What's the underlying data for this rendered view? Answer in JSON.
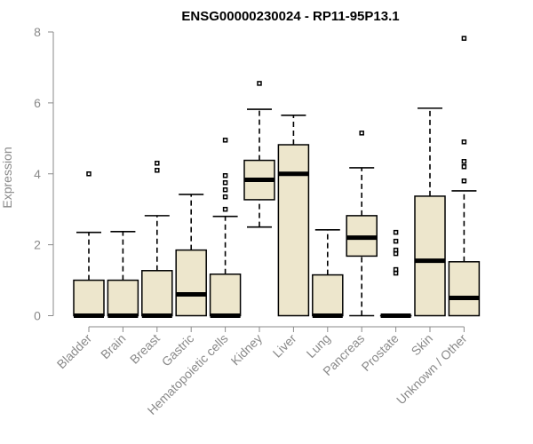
{
  "chart_data": {
    "type": "boxplot",
    "title": "ENSG00000230024 - RP11-95P13.1",
    "ylabel": "Expression",
    "xlabel": "",
    "ylim": [
      0,
      8
    ],
    "yticks": [
      0,
      2,
      4,
      6,
      8
    ],
    "box_color": "#ede6cc",
    "categories": [
      "Bladder",
      "Brain",
      "Breast",
      "Gastric",
      "Hematopoietic cells",
      "Kidney",
      "Liver",
      "Lung",
      "Pancreas",
      "Prostate",
      "Skin",
      "Unknown / Other"
    ],
    "boxes": [
      {
        "min": 0,
        "q1": 0,
        "median": 0,
        "q3": 1.0,
        "max": 2.35,
        "outliers": [
          4.0
        ]
      },
      {
        "min": 0,
        "q1": 0,
        "median": 0,
        "q3": 1.0,
        "max": 2.37,
        "outliers": []
      },
      {
        "min": 0,
        "q1": 0,
        "median": 0,
        "q3": 1.27,
        "max": 2.82,
        "outliers": [
          4.1,
          4.3
        ]
      },
      {
        "min": 0,
        "q1": 0,
        "median": 0.6,
        "q3": 1.85,
        "max": 3.42,
        "outliers": []
      },
      {
        "min": 0,
        "q1": 0,
        "median": 0,
        "q3": 1.17,
        "max": 2.8,
        "outliers": [
          3.0,
          3.35,
          3.55,
          3.75,
          3.95,
          4.95
        ]
      },
      {
        "min": 2.5,
        "q1": 3.27,
        "median": 3.83,
        "q3": 4.38,
        "max": 5.82,
        "outliers": [
          6.55
        ]
      },
      {
        "min": 0,
        "q1": 0,
        "median": 4.0,
        "q3": 4.82,
        "max": 5.65,
        "outliers": []
      },
      {
        "min": 0,
        "q1": 0,
        "median": 0,
        "q3": 1.15,
        "max": 2.42,
        "outliers": []
      },
      {
        "min": 0,
        "q1": 1.68,
        "median": 2.2,
        "q3": 2.82,
        "max": 4.17,
        "outliers": [
          5.15
        ]
      },
      {
        "min": 0,
        "q1": 0,
        "median": 0,
        "q3": 0,
        "max": 0,
        "outliers": [
          1.2,
          1.3,
          1.75,
          1.85,
          2.1,
          2.35
        ]
      },
      {
        "min": 0,
        "q1": 0,
        "median": 1.55,
        "q3": 3.37,
        "max": 5.85,
        "outliers": []
      },
      {
        "min": 0,
        "q1": 0,
        "median": 0.5,
        "q3": 1.52,
        "max": 3.52,
        "outliers": [
          3.8,
          4.2,
          4.35,
          4.9,
          7.82
        ]
      }
    ]
  }
}
